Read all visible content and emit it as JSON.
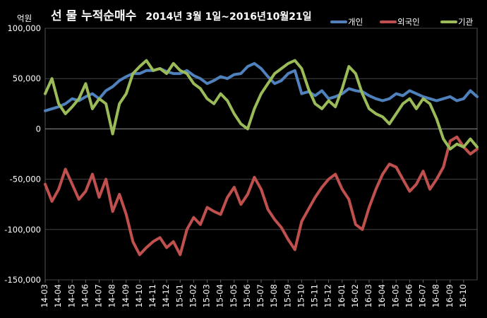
{
  "chart_data": {
    "type": "line",
    "title": "선 물 누적순매수",
    "subtitle": "2014년 3월 1일~2016년10월21일",
    "ylabel": "억원",
    "ylim": [
      -150000,
      100000
    ],
    "yticks": [
      100000,
      50000,
      0,
      -50000,
      -100000,
      -150000
    ],
    "ytick_labels": [
      "100,000",
      "50,000",
      "0",
      "-50,000",
      "-100,000",
      "-150,000"
    ],
    "xlim": [
      0,
      32
    ],
    "categories": [
      "14-03",
      "14-04",
      "14-05",
      "14-06",
      "14-07",
      "14-08",
      "14-09",
      "14-10",
      "14-11",
      "14-12",
      "15-01",
      "15-02",
      "15-03",
      "15-04",
      "15-05",
      "15-06",
      "15-07",
      "15-08",
      "15-09",
      "15-10",
      "15-11",
      "15-12",
      "16-01",
      "16-02",
      "16-03",
      "16-04",
      "16-05",
      "16-06",
      "16-07",
      "16-08",
      "16-09",
      "16-10"
    ],
    "legend_position": "top-right",
    "grid": true,
    "series": [
      {
        "name": "개인",
        "color": "#4F81BD",
        "x": [
          0,
          0.5,
          1,
          1.5,
          2,
          2.5,
          3,
          3.5,
          4,
          4.5,
          5,
          5.5,
          6,
          6.5,
          7,
          7.5,
          8,
          8.5,
          9,
          9.5,
          10,
          10.5,
          11,
          11.5,
          12,
          12.5,
          13,
          13.5,
          14,
          14.5,
          15,
          15.5,
          16,
          16.5,
          17,
          17.5,
          18,
          18.5,
          19,
          19.5,
          20,
          20.5,
          21,
          21.5,
          22,
          22.5,
          23,
          23.5,
          24,
          24.5,
          25,
          25.5,
          26,
          26.5,
          27,
          27.5,
          28,
          28.5,
          29,
          29.5,
          30,
          30.5,
          31,
          31.5,
          32
        ],
        "values": [
          18000,
          20000,
          22000,
          25000,
          30000,
          28000,
          32000,
          35000,
          30000,
          38000,
          42000,
          48000,
          52000,
          55000,
          55000,
          58000,
          58000,
          60000,
          57000,
          55000,
          55000,
          58000,
          53000,
          50000,
          45000,
          48000,
          52000,
          50000,
          54000,
          55000,
          62000,
          65000,
          60000,
          52000,
          45000,
          48000,
          55000,
          58000,
          35000,
          37000,
          33000,
          38000,
          30000,
          32000,
          35000,
          40000,
          38000,
          37000,
          33000,
          30000,
          28000,
          30000,
          35000,
          33000,
          38000,
          35000,
          32000,
          30000,
          28000,
          30000,
          32000,
          28000,
          30000,
          38000,
          32000
        ]
      },
      {
        "name": "외국인",
        "color": "#C0504D",
        "x": [
          0,
          0.5,
          1,
          1.5,
          2,
          2.5,
          3,
          3.5,
          4,
          4.5,
          5,
          5.5,
          6,
          6.5,
          7,
          7.5,
          8,
          8.5,
          9,
          9.5,
          10,
          10.5,
          11,
          11.5,
          12,
          12.5,
          13,
          13.5,
          14,
          14.5,
          15,
          15.5,
          16,
          16.5,
          17,
          17.5,
          18,
          18.5,
          19,
          19.5,
          20,
          20.5,
          21,
          21.5,
          22,
          22.5,
          23,
          23.5,
          24,
          24.5,
          25,
          25.5,
          26,
          26.5,
          27,
          27.5,
          28,
          28.5,
          29,
          29.5,
          30,
          30.5,
          31,
          31.5,
          32
        ],
        "values": [
          -55000,
          -72000,
          -60000,
          -40000,
          -55000,
          -70000,
          -62000,
          -45000,
          -68000,
          -50000,
          -82000,
          -65000,
          -85000,
          -112000,
          -125000,
          -118000,
          -112000,
          -108000,
          -118000,
          -112000,
          -125000,
          -100000,
          -88000,
          -95000,
          -78000,
          -82000,
          -85000,
          -68000,
          -58000,
          -75000,
          -65000,
          -48000,
          -60000,
          -80000,
          -90000,
          -98000,
          -110000,
          -120000,
          -92000,
          -80000,
          -68000,
          -58000,
          -50000,
          -45000,
          -60000,
          -70000,
          -95000,
          -100000,
          -78000,
          -60000,
          -45000,
          -35000,
          -38000,
          -50000,
          -62000,
          -55000,
          -42000,
          -60000,
          -50000,
          -38000,
          -12000,
          -8000,
          -18000,
          -25000,
          -20000
        ]
      },
      {
        "name": "기관",
        "color": "#9BBB59",
        "x": [
          0,
          0.5,
          1,
          1.5,
          2,
          2.5,
          3,
          3.5,
          4,
          4.5,
          5,
          5.5,
          6,
          6.5,
          7,
          7.5,
          8,
          8.5,
          9,
          9.5,
          10,
          10.5,
          11,
          11.5,
          12,
          12.5,
          13,
          13.5,
          14,
          14.5,
          15,
          15.5,
          16,
          16.5,
          17,
          17.5,
          18,
          18.5,
          19,
          19.5,
          20,
          20.5,
          21,
          21.5,
          22,
          22.5,
          23,
          23.5,
          24,
          24.5,
          25,
          25.5,
          26,
          26.5,
          27,
          27.5,
          28,
          28.5,
          29,
          29.5,
          30,
          30.5,
          31,
          31.5,
          32
        ],
        "values": [
          35000,
          50000,
          25000,
          15000,
          22000,
          30000,
          45000,
          20000,
          30000,
          25000,
          -5000,
          25000,
          35000,
          55000,
          62000,
          68000,
          58000,
          60000,
          55000,
          65000,
          58000,
          55000,
          45000,
          40000,
          30000,
          25000,
          35000,
          28000,
          15000,
          5000,
          0,
          20000,
          35000,
          45000,
          55000,
          60000,
          65000,
          68000,
          60000,
          40000,
          25000,
          20000,
          28000,
          22000,
          40000,
          62000,
          55000,
          35000,
          20000,
          15000,
          12000,
          5000,
          15000,
          25000,
          30000,
          20000,
          30000,
          25000,
          10000,
          -10000,
          -20000,
          -15000,
          -18000,
          -10000,
          -18000
        ]
      }
    ]
  }
}
